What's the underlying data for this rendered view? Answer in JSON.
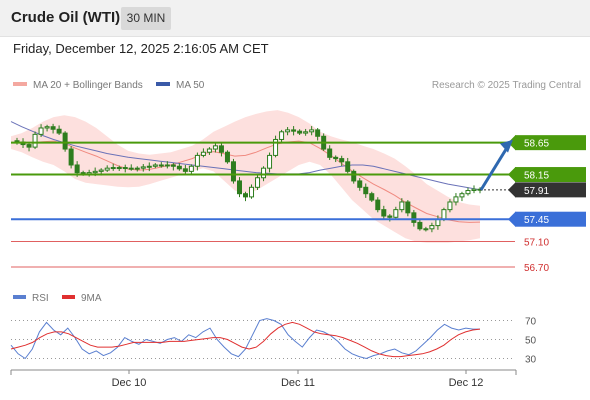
{
  "header": {
    "title": "Crude Oil (WTI)",
    "timeframe": "30 MIN"
  },
  "datetime": "Friday, December 12, 2025 2:16:05 AM CET",
  "legend": {
    "bollinger": "MA 20 + Bollinger Bands",
    "ma50": "MA 50",
    "rsi": "RSI",
    "rsi_ma": "9MA"
  },
  "credit": "Research © 2025 Trading Central",
  "colors": {
    "resistance": "#4a9a0c",
    "support_blue": "#3a6fd8",
    "support_red": "#e06060",
    "current": "#333333",
    "arrow": "#2e68b0",
    "bb_fill": "#fde0de",
    "bb_mid": "#f08a80",
    "ma50": "#6a72b8",
    "candle": "#2e7d1e",
    "rsi": "#5a7fd0",
    "rsi_ma": "#e03030"
  },
  "chart_data": {
    "type": "candlestick",
    "instrument": "Crude Oil (WTI)",
    "timeframe": "30 MIN",
    "x_labels": [
      "Dec 10",
      "Dec 11",
      "Dec 12"
    ],
    "ylim": [
      56.45,
      59.35
    ],
    "price_path": [
      58.68,
      58.66,
      58.62,
      58.58,
      58.78,
      58.88,
      58.9,
      58.86,
      58.8,
      58.55,
      58.3,
      58.18,
      58.16,
      58.18,
      58.2,
      58.22,
      58.25,
      58.26,
      58.26,
      58.25,
      58.24,
      58.25,
      58.27,
      58.28,
      58.3,
      58.3,
      58.3,
      58.28,
      58.24,
      58.2,
      58.28,
      58.45,
      58.5,
      58.55,
      58.6,
      58.5,
      58.35,
      58.05,
      57.85,
      57.8,
      57.95,
      58.1,
      58.25,
      58.45,
      58.7,
      58.82,
      58.85,
      58.83,
      58.8,
      58.82,
      58.85,
      58.75,
      58.55,
      58.42,
      58.4,
      58.35,
      58.2,
      58.05,
      57.95,
      57.85,
      57.75,
      57.6,
      57.5,
      57.48,
      57.6,
      57.72,
      57.55,
      57.4,
      57.3,
      57.3,
      57.35,
      57.45,
      57.6,
      57.72,
      57.8,
      57.85,
      57.9,
      57.92,
      57.91
    ],
    "bollinger_upper": [
      58.75,
      58.8,
      58.88,
      58.98,
      59.05,
      59.08,
      59.05,
      58.98,
      58.88,
      58.75,
      58.62,
      58.52,
      58.48,
      58.46,
      58.48,
      58.5,
      58.55,
      58.6,
      58.7,
      58.82,
      58.9,
      58.98,
      59.05,
      59.1,
      59.14,
      59.16,
      59.12,
      59.05,
      58.95,
      58.82,
      58.75,
      58.7,
      58.66,
      58.6,
      58.55,
      58.48,
      58.4,
      58.28,
      58.15,
      58.0,
      57.9,
      57.8,
      57.72,
      57.68,
      57.66
    ],
    "bollinger_lower": [
      58.55,
      58.5,
      58.42,
      58.35,
      58.3,
      58.2,
      58.08,
      58.02,
      58.0,
      57.98,
      57.96,
      57.95,
      57.96,
      58.0,
      58.05,
      58.1,
      58.15,
      58.2,
      58.25,
      58.2,
      58.05,
      57.9,
      57.85,
      57.9,
      58.0,
      58.1,
      58.2,
      58.3,
      58.35,
      58.3,
      58.15,
      57.95,
      57.75,
      57.6,
      57.45,
      57.35,
      57.25,
      57.15,
      57.1,
      57.08,
      57.08,
      57.08,
      57.1,
      57.12,
      57.15
    ],
    "ma50": [
      58.98,
      58.9,
      58.83,
      58.76,
      58.7,
      58.65,
      58.6,
      58.56,
      58.52,
      58.48,
      58.45,
      58.42,
      58.4,
      58.38,
      58.36,
      58.34,
      58.32,
      58.3,
      58.28,
      58.26,
      58.24,
      58.22,
      58.2,
      58.18,
      58.17,
      58.16,
      58.16,
      58.16,
      58.18,
      58.22,
      58.25,
      58.28,
      58.3,
      58.3,
      58.28,
      58.24,
      58.2,
      58.16,
      58.12,
      58.08,
      58.04,
      58.0,
      57.97,
      57.94,
      57.91
    ],
    "forecast_arrow": {
      "from": 57.91,
      "to": 58.65
    },
    "levels": [
      {
        "label": "58.65",
        "value": 58.65,
        "kind": "resistance"
      },
      {
        "label": "58.15",
        "value": 58.15,
        "kind": "resistance"
      },
      {
        "label": "57.91",
        "value": 57.91,
        "kind": "current"
      },
      {
        "label": "57.45",
        "value": 57.45,
        "kind": "support-blue"
      },
      {
        "label": "57.10",
        "value": 57.1,
        "kind": "support-red"
      },
      {
        "label": "56.70",
        "value": 56.7,
        "kind": "support-red"
      }
    ],
    "rsi": {
      "ylim": [
        20,
        80
      ],
      "ticks": [
        70,
        50,
        30
      ],
      "values": [
        44,
        35,
        30,
        40,
        58,
        68,
        60,
        55,
        62,
        52,
        40,
        35,
        38,
        33,
        36,
        42,
        52,
        48,
        45,
        50,
        48,
        46,
        50,
        52,
        48,
        55,
        52,
        58,
        62,
        50,
        42,
        35,
        32,
        40,
        55,
        70,
        72,
        70,
        66,
        55,
        48,
        42,
        52,
        60,
        58,
        54,
        48,
        40,
        35,
        32,
        30,
        33,
        35,
        38,
        40,
        36,
        34,
        38,
        45,
        52,
        60,
        66,
        62,
        60,
        62,
        61,
        61
      ],
      "ma9": [
        40,
        42,
        44,
        47,
        52,
        56,
        58,
        58,
        56,
        52,
        48,
        44,
        42,
        42,
        42,
        43,
        45,
        47,
        47,
        47,
        47,
        47,
        48,
        48,
        48,
        49,
        50,
        51,
        52,
        52,
        50,
        46,
        42,
        40,
        42,
        48,
        56,
        62,
        66,
        68,
        66,
        62,
        58,
        56,
        55,
        54,
        52,
        49,
        46,
        42,
        38,
        35,
        33,
        32,
        32,
        33,
        34,
        35,
        37,
        40,
        44,
        50,
        55,
        58,
        60,
        61
      ]
    }
  }
}
